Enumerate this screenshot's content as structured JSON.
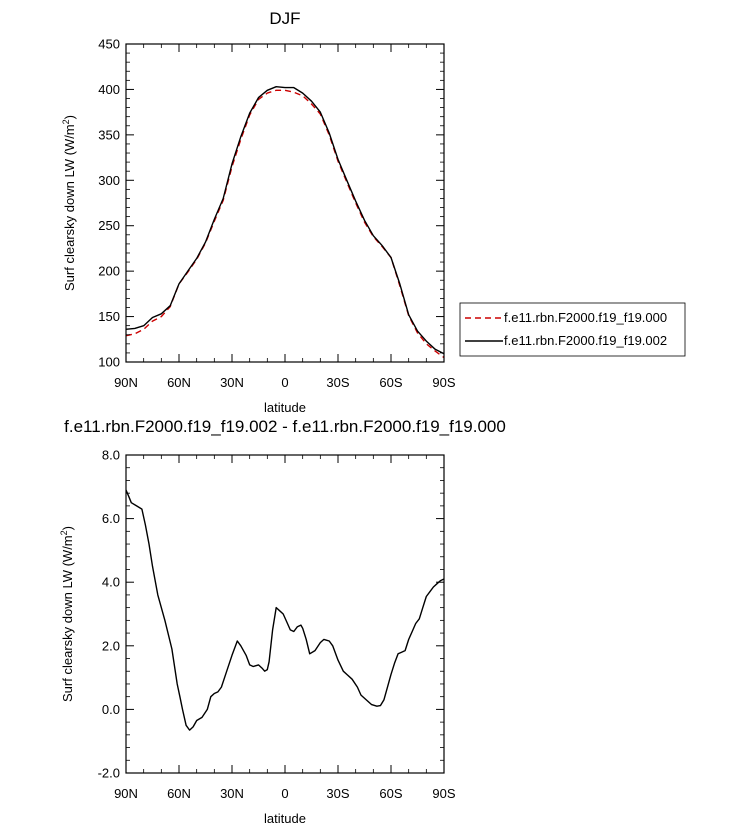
{
  "chart_data": [
    {
      "type": "line",
      "title": "DJF",
      "xlabel": "latitude",
      "ylabel": "Surf clearsky down LW (W/m",
      "ylabel_sup": "2",
      "ylabel_close": ")",
      "xlim": [
        90,
        -90
      ],
      "ylim": [
        100,
        450
      ],
      "xticks": [
        90,
        60,
        30,
        0,
        -30,
        -60,
        -90
      ],
      "xtick_labels": [
        "90N",
        "60N",
        "30N",
        "0",
        "30S",
        "60S",
        "90S"
      ],
      "yticks": [
        100,
        150,
        200,
        250,
        300,
        350,
        400,
        450
      ],
      "ytick_labels": [
        "100",
        "150",
        "200",
        "250",
        "300",
        "350",
        "400",
        "450"
      ],
      "legend_position": "right",
      "series": [
        {
          "name": "f.e11.rbn.F2000.f19_f19.000",
          "color": "#cc0000",
          "dash": "dashed",
          "x": [
            90,
            85,
            80,
            75,
            70,
            65,
            60,
            55,
            50,
            45,
            40,
            35,
            30,
            25,
            20,
            15,
            10,
            5,
            0,
            -5,
            -10,
            -15,
            -20,
            -25,
            -30,
            -35,
            -40,
            -45,
            -50,
            -55,
            -60,
            -65,
            -70,
            -75,
            -80,
            -85,
            -90
          ],
          "y": [
            129,
            131,
            136,
            145,
            150,
            161,
            186,
            199,
            213,
            231,
            255,
            278,
            315,
            345,
            372,
            389,
            396,
            399,
            399,
            397,
            393,
            384,
            373,
            350,
            321,
            298,
            275,
            254,
            238,
            227,
            215,
            184,
            151,
            132,
            120,
            112,
            105
          ]
        },
        {
          "name": "f.e11.rbn.F2000.f19_f19.002",
          "color": "#000000",
          "dash": "solid",
          "x": [
            90,
            85,
            80,
            75,
            70,
            65,
            60,
            55,
            50,
            45,
            40,
            35,
            30,
            25,
            20,
            15,
            10,
            5,
            0,
            -5,
            -10,
            -15,
            -20,
            -25,
            -30,
            -35,
            -40,
            -45,
            -50,
            -55,
            -60,
            -65,
            -70,
            -75,
            -80,
            -85,
            -90
          ],
          "y": [
            136,
            137,
            140,
            149,
            153,
            162,
            186,
            200,
            214,
            232,
            257,
            280,
            318,
            348,
            374,
            391,
            399,
            403,
            402,
            402,
            396,
            387,
            375,
            352,
            323,
            300,
            277,
            256,
            239,
            228,
            215,
            186,
            152,
            134,
            123,
            114,
            109
          ]
        }
      ]
    },
    {
      "type": "line",
      "title": "f.e11.rbn.F2000.f19_f19.002 - f.e11.rbn.F2000.f19_f19.000",
      "xlabel": "latitude",
      "ylabel": "Surf clearsky down LW (W/m",
      "ylabel_sup": "2",
      "ylabel_close": ")",
      "xlim": [
        90,
        -90
      ],
      "ylim": [
        -2.0,
        8.0
      ],
      "xticks": [
        90,
        60,
        30,
        0,
        -30,
        -60,
        -90
      ],
      "xtick_labels": [
        "90N",
        "60N",
        "30N",
        "0",
        "30S",
        "60S",
        "90S"
      ],
      "yticks": [
        -2.0,
        0.0,
        2.0,
        4.0,
        6.0,
        8.0
      ],
      "ytick_labels": [
        "-2.0",
        "0.0",
        "2.0",
        "4.0",
        "6.0",
        "8.0"
      ],
      "series": [
        {
          "color": "#000000",
          "dash": "solid",
          "x": [
            90,
            88.5,
            87,
            84,
            81,
            79,
            77,
            75,
            72,
            68,
            64,
            61,
            59.5,
            58,
            56,
            54,
            52,
            50,
            47,
            44,
            42,
            40,
            38,
            36,
            33,
            30,
            27,
            25,
            22,
            20,
            18,
            15,
            13,
            11.5,
            10,
            9,
            7,
            5,
            3,
            1,
            -1,
            -3,
            -5,
            -7,
            -9,
            -10,
            -12,
            -14,
            -17,
            -20,
            -22,
            -25,
            -27,
            -30,
            -33,
            -35,
            -38,
            -41,
            -43,
            -46,
            -49,
            -52,
            -54,
            -56,
            -58,
            -60,
            -62,
            -64,
            -66,
            -68,
            -70,
            -72,
            -74,
            -76,
            -78,
            -80,
            -82,
            -84,
            -86,
            -88,
            -90
          ],
          "y": [
            6.9,
            6.7,
            6.5,
            6.4,
            6.3,
            5.8,
            5.2,
            4.5,
            3.6,
            2.8,
            1.9,
            0.8,
            0.4,
            0.0,
            -0.5,
            -0.65,
            -0.55,
            -0.35,
            -0.25,
            0.0,
            0.4,
            0.5,
            0.55,
            0.7,
            1.2,
            1.7,
            2.15,
            2.0,
            1.7,
            1.4,
            1.35,
            1.4,
            1.3,
            1.2,
            1.25,
            1.5,
            2.5,
            3.2,
            3.1,
            3.0,
            2.75,
            2.5,
            2.45,
            2.6,
            2.65,
            2.55,
            2.2,
            1.75,
            1.85,
            2.1,
            2.2,
            2.15,
            2.0,
            1.55,
            1.2,
            1.1,
            0.95,
            0.7,
            0.45,
            0.3,
            0.15,
            0.1,
            0.12,
            0.3,
            0.7,
            1.1,
            1.45,
            1.75,
            1.8,
            1.85,
            2.2,
            2.45,
            2.7,
            2.85,
            3.2,
            3.55,
            3.7,
            3.85,
            3.95,
            4.05,
            4.1
          ]
        }
      ]
    }
  ]
}
